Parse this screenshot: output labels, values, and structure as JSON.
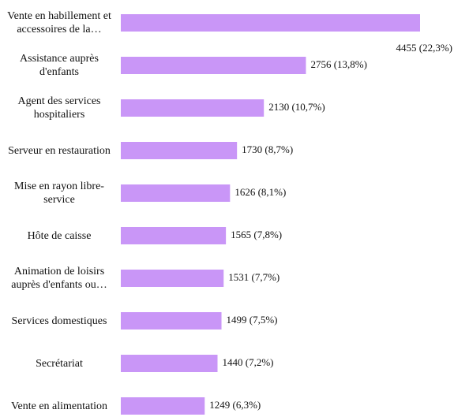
{
  "chart_data": {
    "type": "bar",
    "orientation": "horizontal",
    "color": "#c996f7",
    "categories": [
      "Vente en habillement et accessoires de la…",
      "Assistance auprès d'enfants",
      "Agent des services hospitaliers",
      "Serveur en restauration",
      "Mise en rayon libre-service",
      "Hôte de caisse",
      "Animation de loisirs auprès d'enfants ou…",
      "Services domestiques",
      "Secrétariat",
      "Vente en alimentation"
    ],
    "values": [
      4455,
      2756,
      2130,
      1730,
      1626,
      1565,
      1531,
      1499,
      1440,
      1249
    ],
    "value_labels": [
      "4455 (22,3%)",
      "2756 (13,8%)",
      "2130 (10,7%)",
      "1730 (8,7%)",
      "1626 (8,1%)",
      "1565 (7,8%)",
      "1531 (7,7%)",
      "1499 (7,5%)",
      "1440 (7,2%)",
      "1249 (6,3%)"
    ]
  }
}
